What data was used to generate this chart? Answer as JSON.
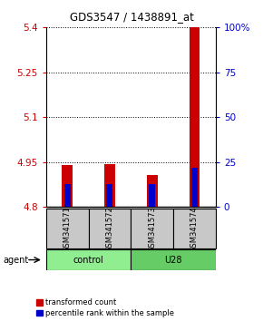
{
  "title": "GDS3547 / 1438891_at",
  "samples": [
    "GSM341571",
    "GSM341572",
    "GSM341573",
    "GSM341574"
  ],
  "ylim": [
    4.8,
    5.4
  ],
  "y2lim": [
    0,
    100
  ],
  "yticks": [
    4.8,
    4.95,
    5.1,
    5.25,
    5.4
  ],
  "ytick_labels": [
    "4.8",
    "4.95",
    "5.1",
    "5.25",
    "5.4"
  ],
  "y2ticks": [
    0,
    25,
    50,
    75,
    100
  ],
  "y2tick_labels": [
    "0",
    "25",
    "50",
    "75",
    "100%"
  ],
  "red_bar_tops": [
    4.94,
    4.944,
    4.908,
    5.4
  ],
  "blue_bar_tops": [
    4.876,
    4.876,
    4.876,
    4.932
  ],
  "bar_bottom": 4.8,
  "red_bar_width": 0.25,
  "blue_bar_width": 0.15,
  "red_color": "#CC0000",
  "blue_color": "#0000CC",
  "legend_red": "transformed count",
  "legend_blue": "percentile rank within the sample",
  "ylabel_color_left": "#CC0000",
  "ylabel_color_right": "#0000CC",
  "sample_box_color": "#C8C8C8",
  "control_color": "#90EE90",
  "u28_color": "#66CC66",
  "title_fontsize": 8.5
}
